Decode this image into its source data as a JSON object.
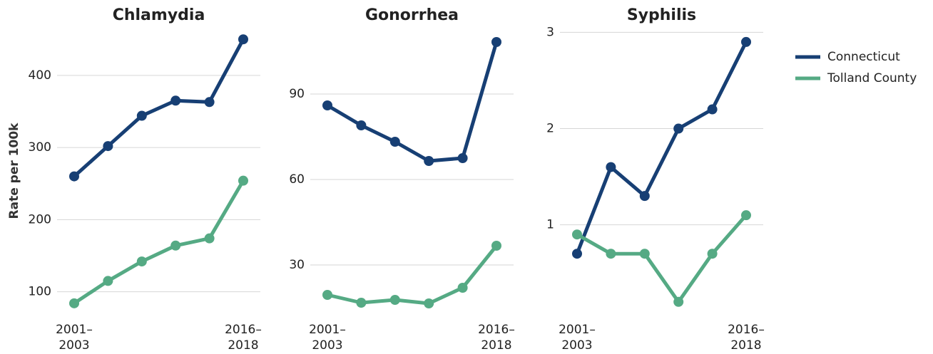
{
  "chart_data": [
    {
      "type": "line",
      "title": "Chlamydia",
      "y_label": "Rate per 100k",
      "categories": [
        "2001–2003",
        null,
        null,
        null,
        null,
        "2016–2018"
      ],
      "series": [
        {
          "name": "Connecticut",
          "color": "#173f74",
          "values": [
            260,
            302,
            344,
            365,
            363,
            450
          ]
        },
        {
          "name": "Tolland County",
          "color": "#55aa84",
          "values": [
            84,
            115,
            142,
            164,
            174,
            254
          ]
        }
      ],
      "ylim": [
        70,
        465
      ],
      "yticks": [
        100,
        200,
        300,
        400
      ],
      "grid": true
    },
    {
      "type": "line",
      "title": "Gonorrhea",
      "categories": [
        "2001–2003",
        null,
        null,
        null,
        null,
        "2016–2018"
      ],
      "series": [
        {
          "name": "Connecticut",
          "color": "#173f74",
          "values": [
            86,
            79,
            73.25,
            66.5,
            67.5,
            108.25
          ]
        },
        {
          "name": "Tolland County",
          "color": "#55aa84",
          "values": [
            19.5,
            16.75,
            17.75,
            16.5,
            22,
            36.75
          ]
        }
      ],
      "ylim": [
        13,
        113
      ],
      "yticks": [
        30,
        60,
        90
      ],
      "grid": true
    },
    {
      "type": "line",
      "title": "Syphilis",
      "categories": [
        "2001–2003",
        null,
        null,
        null,
        null,
        "2016–2018"
      ],
      "series": [
        {
          "name": "Connecticut",
          "color": "#173f74",
          "values": [
            0.7,
            1.6,
            1.3,
            2.0,
            2.2,
            2.9
          ]
        },
        {
          "name": "Tolland County",
          "color": "#55aa84",
          "values": [
            0.9,
            0.7,
            0.7,
            0.2,
            0.7,
            1.1
          ]
        }
      ],
      "ylim": [
        0.08,
        3.04
      ],
      "yticks": [
        1,
        2,
        3
      ],
      "grid": true
    }
  ]
}
